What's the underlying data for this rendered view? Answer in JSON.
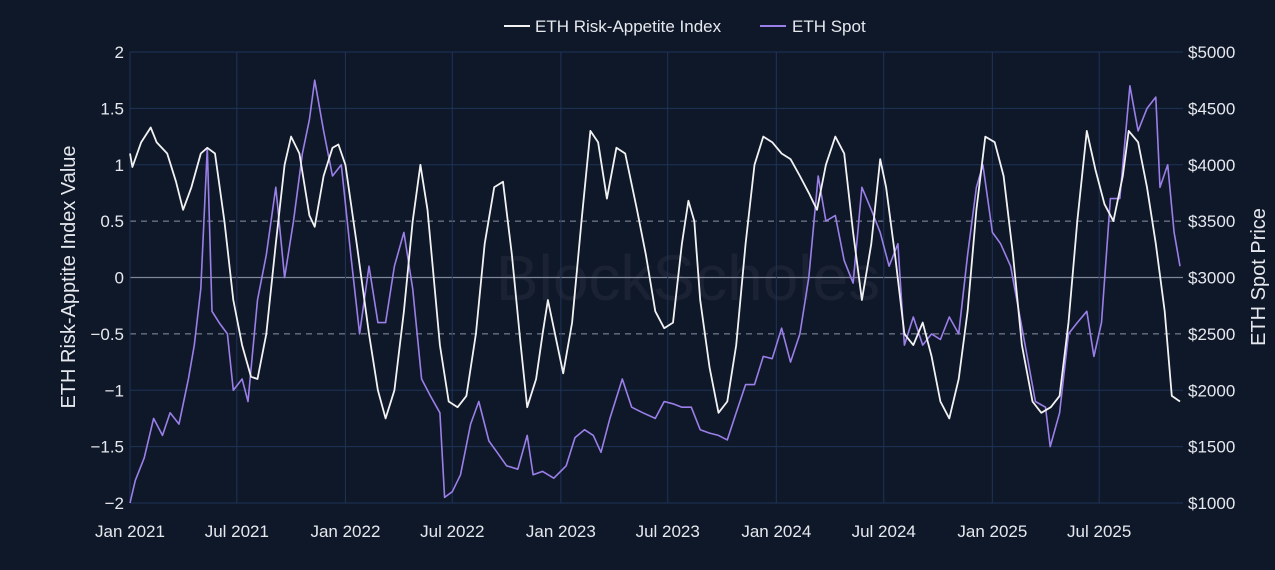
{
  "watermark": "BlockScholes",
  "chart_data": {
    "type": "line",
    "title": "",
    "legend": {
      "placement": "top-center",
      "entries": [
        "ETH Risk-Appetite Index",
        "ETH Spot"
      ]
    },
    "x_ticks": [
      "Jan 2021",
      "Jul 2021",
      "Jan 2022",
      "Jul 2022",
      "Jan 2023",
      "Jul 2023",
      "Jan 2024",
      "Jul 2024",
      "Jan 2025",
      "Jul 2025"
    ],
    "xlim": [
      "2021-01-01",
      "2025-11-20"
    ],
    "y_left": {
      "label": "ETH Risk-Apptite Index Value",
      "range": [
        -2,
        2
      ],
      "ticks": [
        "2",
        "1.5",
        "1",
        "0.5",
        "0",
        "−0.5",
        "−1",
        "−1.5",
        "−2"
      ],
      "tick_values": [
        2,
        1.5,
        1,
        0.5,
        0,
        -0.5,
        -1,
        -1.5,
        -2
      ],
      "dashed_lines": [
        0.5,
        -0.5
      ],
      "solid_line": 0
    },
    "y_right": {
      "label": "ETH Spot Price",
      "range": [
        1000,
        5000
      ],
      "ticks": [
        "$5000",
        "$4500",
        "$4000",
        "$3500",
        "$3000",
        "$2500",
        "$2000",
        "$1500",
        "$1000"
      ],
      "tick_values": [
        5000,
        4500,
        4000,
        3500,
        3000,
        2500,
        2000,
        1500,
        1000
      ]
    },
    "grid": true,
    "series": [
      {
        "name": "ETH Risk-Appetite Index",
        "axis": "left",
        "color": "#f2f2f2",
        "points": [
          [
            "2021-01-01",
            1.1
          ],
          [
            "2021-01-05",
            0.98
          ],
          [
            "2021-01-20",
            1.2
          ],
          [
            "2021-02-05",
            1.33
          ],
          [
            "2021-02-15",
            1.2
          ],
          [
            "2021-03-05",
            1.1
          ],
          [
            "2021-03-20",
            0.85
          ],
          [
            "2021-04-01",
            0.6
          ],
          [
            "2021-04-15",
            0.8
          ],
          [
            "2021-05-01",
            1.1
          ],
          [
            "2021-05-12",
            1.15
          ],
          [
            "2021-05-25",
            1.1
          ],
          [
            "2021-06-10",
            0.5
          ],
          [
            "2021-06-25",
            -0.2
          ],
          [
            "2021-07-10",
            -0.6
          ],
          [
            "2021-07-25",
            -0.88
          ],
          [
            "2021-08-05",
            -0.9
          ],
          [
            "2021-08-20",
            -0.5
          ],
          [
            "2021-09-05",
            0.3
          ],
          [
            "2021-09-20",
            1.0
          ],
          [
            "2021-10-01",
            1.25
          ],
          [
            "2021-10-15",
            1.1
          ],
          [
            "2021-11-01",
            0.55
          ],
          [
            "2021-11-10",
            0.45
          ],
          [
            "2021-11-25",
            0.9
          ],
          [
            "2021-12-10",
            1.15
          ],
          [
            "2021-12-20",
            1.18
          ],
          [
            "2022-01-01",
            1.0
          ],
          [
            "2022-01-20",
            0.3
          ],
          [
            "2022-02-10",
            -0.5
          ],
          [
            "2022-02-25",
            -1.0
          ],
          [
            "2022-03-10",
            -1.25
          ],
          [
            "2022-03-25",
            -1.0
          ],
          [
            "2022-04-10",
            -0.3
          ],
          [
            "2022-04-25",
            0.5
          ],
          [
            "2022-05-08",
            1.0
          ],
          [
            "2022-05-20",
            0.6
          ],
          [
            "2022-06-10",
            -0.6
          ],
          [
            "2022-06-25",
            -1.1
          ],
          [
            "2022-07-10",
            -1.15
          ],
          [
            "2022-07-25",
            -1.05
          ],
          [
            "2022-08-10",
            -0.5
          ],
          [
            "2022-08-25",
            0.3
          ],
          [
            "2022-09-10",
            0.8
          ],
          [
            "2022-09-25",
            0.85
          ],
          [
            "2022-10-10",
            0.2
          ],
          [
            "2022-10-25",
            -0.6
          ],
          [
            "2022-11-05",
            -1.15
          ],
          [
            "2022-11-20",
            -0.9
          ],
          [
            "2022-12-01",
            -0.5
          ],
          [
            "2022-12-10",
            -0.2
          ],
          [
            "2022-12-22",
            -0.5
          ],
          [
            "2023-01-05",
            -0.85
          ],
          [
            "2023-01-20",
            -0.4
          ],
          [
            "2023-02-05",
            0.5
          ],
          [
            "2023-02-20",
            1.3
          ],
          [
            "2023-03-05",
            1.2
          ],
          [
            "2023-03-20",
            0.7
          ],
          [
            "2023-04-05",
            1.15
          ],
          [
            "2023-04-20",
            1.1
          ],
          [
            "2023-05-10",
            0.6
          ],
          [
            "2023-05-25",
            0.2
          ],
          [
            "2023-06-10",
            -0.3
          ],
          [
            "2023-06-25",
            -0.45
          ],
          [
            "2023-07-10",
            -0.4
          ],
          [
            "2023-07-25",
            0.3
          ],
          [
            "2023-08-05",
            0.68
          ],
          [
            "2023-08-15",
            0.5
          ],
          [
            "2023-08-25",
            -0.2
          ],
          [
            "2023-09-10",
            -0.8
          ],
          [
            "2023-09-25",
            -1.2
          ],
          [
            "2023-10-10",
            -1.1
          ],
          [
            "2023-10-25",
            -0.6
          ],
          [
            "2023-11-10",
            0.3
          ],
          [
            "2023-11-25",
            1.0
          ],
          [
            "2023-12-10",
            1.25
          ],
          [
            "2023-12-25",
            1.2
          ],
          [
            "2024-01-10",
            1.1
          ],
          [
            "2024-01-25",
            1.05
          ],
          [
            "2024-02-10",
            0.9
          ],
          [
            "2024-02-25",
            0.75
          ],
          [
            "2024-03-10",
            0.6
          ],
          [
            "2024-03-25",
            1.0
          ],
          [
            "2024-04-10",
            1.25
          ],
          [
            "2024-04-25",
            1.1
          ],
          [
            "2024-05-10",
            0.4
          ],
          [
            "2024-05-25",
            -0.2
          ],
          [
            "2024-06-10",
            0.3
          ],
          [
            "2024-06-25",
            1.05
          ],
          [
            "2024-07-05",
            0.8
          ],
          [
            "2024-07-20",
            0.2
          ],
          [
            "2024-08-05",
            -0.5
          ],
          [
            "2024-08-20",
            -0.6
          ],
          [
            "2024-09-05",
            -0.4
          ],
          [
            "2024-09-20",
            -0.7
          ],
          [
            "2024-10-05",
            -1.1
          ],
          [
            "2024-10-20",
            -1.25
          ],
          [
            "2024-11-05",
            -0.9
          ],
          [
            "2024-11-20",
            -0.3
          ],
          [
            "2024-12-05",
            0.6
          ],
          [
            "2024-12-20",
            1.25
          ],
          [
            "2025-01-05",
            1.2
          ],
          [
            "2025-01-20",
            0.9
          ],
          [
            "2025-02-05",
            0.2
          ],
          [
            "2025-02-20",
            -0.6
          ],
          [
            "2025-03-10",
            -1.1
          ],
          [
            "2025-03-25",
            -1.2
          ],
          [
            "2025-04-10",
            -1.15
          ],
          [
            "2025-04-25",
            -1.05
          ],
          [
            "2025-05-10",
            -0.4
          ],
          [
            "2025-05-25",
            0.5
          ],
          [
            "2025-06-10",
            1.3
          ],
          [
            "2025-06-25",
            0.95
          ],
          [
            "2025-07-10",
            0.65
          ],
          [
            "2025-07-25",
            0.5
          ],
          [
            "2025-08-10",
            0.9
          ],
          [
            "2025-08-20",
            1.3
          ],
          [
            "2025-09-05",
            1.2
          ],
          [
            "2025-09-20",
            0.8
          ],
          [
            "2025-10-05",
            0.3
          ],
          [
            "2025-10-20",
            -0.3
          ],
          [
            "2025-11-01",
            -1.05
          ],
          [
            "2025-11-15",
            -1.1
          ]
        ]
      },
      {
        "name": "ETH Spot",
        "axis": "right",
        "color": "#9b7fe8",
        "points": [
          [
            "2021-01-01",
            1000
          ],
          [
            "2021-01-10",
            1200
          ],
          [
            "2021-01-25",
            1400
          ],
          [
            "2021-02-10",
            1750
          ],
          [
            "2021-02-25",
            1600
          ],
          [
            "2021-03-10",
            1800
          ],
          [
            "2021-03-25",
            1700
          ],
          [
            "2021-04-10",
            2100
          ],
          [
            "2021-04-20",
            2400
          ],
          [
            "2021-05-01",
            2900
          ],
          [
            "2021-05-12",
            4150
          ],
          [
            "2021-05-20",
            2700
          ],
          [
            "2021-06-01",
            2600
          ],
          [
            "2021-06-15",
            2500
          ],
          [
            "2021-06-25",
            2000
          ],
          [
            "2021-07-10",
            2100
          ],
          [
            "2021-07-20",
            1900
          ],
          [
            "2021-08-05",
            2800
          ],
          [
            "2021-08-20",
            3200
          ],
          [
            "2021-09-05",
            3800
          ],
          [
            "2021-09-20",
            3000
          ],
          [
            "2021-10-05",
            3500
          ],
          [
            "2021-10-20",
            4100
          ],
          [
            "2021-11-01",
            4400
          ],
          [
            "2021-11-10",
            4750
          ],
          [
            "2021-11-25",
            4300
          ],
          [
            "2021-12-10",
            3900
          ],
          [
            "2021-12-25",
            4000
          ],
          [
            "2022-01-10",
            3200
          ],
          [
            "2022-01-25",
            2500
          ],
          [
            "2022-02-10",
            3100
          ],
          [
            "2022-02-25",
            2600
          ],
          [
            "2022-03-10",
            2600
          ],
          [
            "2022-03-25",
            3100
          ],
          [
            "2022-04-10",
            3400
          ],
          [
            "2022-04-25",
            2900
          ],
          [
            "2022-05-10",
            2100
          ],
          [
            "2022-05-25",
            1950
          ],
          [
            "2022-06-10",
            1800
          ],
          [
            "2022-06-18",
            1050
          ],
          [
            "2022-07-01",
            1100
          ],
          [
            "2022-07-15",
            1250
          ],
          [
            "2022-08-01",
            1700
          ],
          [
            "2022-08-15",
            1900
          ],
          [
            "2022-09-01",
            1550
          ],
          [
            "2022-09-15",
            1450
          ],
          [
            "2022-10-01",
            1330
          ],
          [
            "2022-10-20",
            1300
          ],
          [
            "2022-11-05",
            1600
          ],
          [
            "2022-11-15",
            1250
          ],
          [
            "2022-12-01",
            1280
          ],
          [
            "2022-12-20",
            1220
          ],
          [
            "2023-01-10",
            1330
          ],
          [
            "2023-01-25",
            1580
          ],
          [
            "2023-02-10",
            1650
          ],
          [
            "2023-02-25",
            1600
          ],
          [
            "2023-03-10",
            1450
          ],
          [
            "2023-03-25",
            1750
          ],
          [
            "2023-04-15",
            2100
          ],
          [
            "2023-05-01",
            1850
          ],
          [
            "2023-05-20",
            1800
          ],
          [
            "2023-06-10",
            1750
          ],
          [
            "2023-06-25",
            1900
          ],
          [
            "2023-07-10",
            1880
          ],
          [
            "2023-07-25",
            1850
          ],
          [
            "2023-08-10",
            1850
          ],
          [
            "2023-08-25",
            1650
          ],
          [
            "2023-09-10",
            1620
          ],
          [
            "2023-09-25",
            1600
          ],
          [
            "2023-10-10",
            1560
          ],
          [
            "2023-10-25",
            1800
          ],
          [
            "2023-11-10",
            2050
          ],
          [
            "2023-11-25",
            2050
          ],
          [
            "2023-12-10",
            2300
          ],
          [
            "2023-12-25",
            2280
          ],
          [
            "2024-01-10",
            2550
          ],
          [
            "2024-01-25",
            2250
          ],
          [
            "2024-02-10",
            2500
          ],
          [
            "2024-02-25",
            3000
          ],
          [
            "2024-03-12",
            3900
          ],
          [
            "2024-03-25",
            3500
          ],
          [
            "2024-04-10",
            3550
          ],
          [
            "2024-04-25",
            3150
          ],
          [
            "2024-05-10",
            2950
          ],
          [
            "2024-05-25",
            3800
          ],
          [
            "2024-06-10",
            3600
          ],
          [
            "2024-06-25",
            3400
          ],
          [
            "2024-07-10",
            3100
          ],
          [
            "2024-07-25",
            3300
          ],
          [
            "2024-08-05",
            2400
          ],
          [
            "2024-08-20",
            2650
          ],
          [
            "2024-09-05",
            2400
          ],
          [
            "2024-09-20",
            2500
          ],
          [
            "2024-10-05",
            2450
          ],
          [
            "2024-10-20",
            2650
          ],
          [
            "2024-11-05",
            2500
          ],
          [
            "2024-11-20",
            3200
          ],
          [
            "2024-12-05",
            3800
          ],
          [
            "2024-12-16",
            4000
          ],
          [
            "2025-01-01",
            3400
          ],
          [
            "2025-01-15",
            3300
          ],
          [
            "2025-02-01",
            3100
          ],
          [
            "2025-02-15",
            2700
          ],
          [
            "2025-03-01",
            2300
          ],
          [
            "2025-03-15",
            1900
          ],
          [
            "2025-04-01",
            1850
          ],
          [
            "2025-04-09",
            1500
          ],
          [
            "2025-04-25",
            1800
          ],
          [
            "2025-05-10",
            2500
          ],
          [
            "2025-05-25",
            2600
          ],
          [
            "2025-06-10",
            2700
          ],
          [
            "2025-06-22",
            2300
          ],
          [
            "2025-07-05",
            2600
          ],
          [
            "2025-07-20",
            3700
          ],
          [
            "2025-08-05",
            3700
          ],
          [
            "2025-08-22",
            4700
          ],
          [
            "2025-09-05",
            4300
          ],
          [
            "2025-09-20",
            4500
          ],
          [
            "2025-10-05",
            4600
          ],
          [
            "2025-10-12",
            3800
          ],
          [
            "2025-10-25",
            4000
          ],
          [
            "2025-11-05",
            3400
          ],
          [
            "2025-11-15",
            3100
          ]
        ]
      }
    ]
  }
}
